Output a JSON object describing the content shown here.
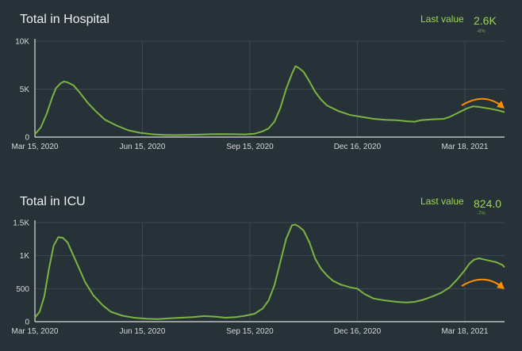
{
  "chart_data": [
    {
      "type": "line",
      "title": "Total in Hospital",
      "last_value_label": "Last value",
      "last_value": "2.6K",
      "last_value_change": "-6%",
      "line_color": "#7cb342",
      "trend_arrow_color": "#ff8f00",
      "grid": true,
      "ylim": [
        0,
        10000
      ],
      "y_ticks": [
        {
          "value": 0,
          "label": "0"
        },
        {
          "value": 5000,
          "label": "5K"
        },
        {
          "value": 10000,
          "label": "10K"
        }
      ],
      "xlim_days": [
        0,
        402
      ],
      "x_ticks": [
        {
          "day": 0,
          "label": "Mar 15, 2020"
        },
        {
          "day": 92,
          "label": "Jun 15, 2020"
        },
        {
          "day": 184,
          "label": "Sep 15, 2020"
        },
        {
          "day": 276,
          "label": "Dec 16, 2020"
        },
        {
          "day": 368,
          "label": "Mar 18, 2021"
        }
      ],
      "series": [
        {
          "name": "Total in Hospital",
          "points": [
            [
              0,
              300
            ],
            [
              5,
              1000
            ],
            [
              10,
              2400
            ],
            [
              15,
              4200
            ],
            [
              18,
              5100
            ],
            [
              22,
              5600
            ],
            [
              25,
              5800
            ],
            [
              28,
              5700
            ],
            [
              33,
              5400
            ],
            [
              38,
              4700
            ],
            [
              45,
              3600
            ],
            [
              52,
              2700
            ],
            [
              60,
              1800
            ],
            [
              70,
              1200
            ],
            [
              80,
              700
            ],
            [
              90,
              450
            ],
            [
              100,
              300
            ],
            [
              110,
              230
            ],
            [
              120,
              210
            ],
            [
              130,
              230
            ],
            [
              140,
              260
            ],
            [
              150,
              300
            ],
            [
              160,
              310
            ],
            [
              170,
              300
            ],
            [
              180,
              280
            ],
            [
              188,
              350
            ],
            [
              195,
              600
            ],
            [
              200,
              900
            ],
            [
              205,
              1600
            ],
            [
              210,
              3000
            ],
            [
              215,
              5000
            ],
            [
              220,
              6600
            ],
            [
              223,
              7400
            ],
            [
              226,
              7200
            ],
            [
              230,
              6800
            ],
            [
              235,
              5800
            ],
            [
              240,
              4700
            ],
            [
              245,
              3900
            ],
            [
              250,
              3300
            ],
            [
              260,
              2700
            ],
            [
              270,
              2300
            ],
            [
              280,
              2100
            ],
            [
              290,
              1900
            ],
            [
              300,
              1800
            ],
            [
              310,
              1750
            ],
            [
              318,
              1650
            ],
            [
              325,
              1600
            ],
            [
              330,
              1750
            ],
            [
              340,
              1850
            ],
            [
              350,
              1900
            ],
            [
              355,
              2100
            ],
            [
              360,
              2400
            ],
            [
              365,
              2700
            ],
            [
              370,
              3000
            ],
            [
              375,
              3200
            ],
            [
              380,
              3150
            ],
            [
              385,
              3050
            ],
            [
              390,
              2950
            ],
            [
              396,
              2800
            ],
            [
              402,
              2600
            ]
          ]
        }
      ]
    },
    {
      "type": "line",
      "title": "Total in ICU",
      "last_value_label": "Last value",
      "last_value": "824.0",
      "last_value_change": "-7%",
      "line_color": "#7cb342",
      "trend_arrow_color": "#ff8f00",
      "grid": true,
      "ylim": [
        0,
        1500
      ],
      "y_ticks": [
        {
          "value": 0,
          "label": "0"
        },
        {
          "value": 500,
          "label": "500"
        },
        {
          "value": 1000,
          "label": "1K"
        },
        {
          "value": 1500,
          "label": "1.5K"
        }
      ],
      "xlim_days": [
        0,
        402
      ],
      "x_ticks": [
        {
          "day": 0,
          "label": "Mar 15, 2020"
        },
        {
          "day": 92,
          "label": "Jun 15, 2020"
        },
        {
          "day": 184,
          "label": "Sep 15, 2020"
        },
        {
          "day": 276,
          "label": "Dec 16, 2020"
        },
        {
          "day": 368,
          "label": "Mar 18, 2021"
        }
      ],
      "series": [
        {
          "name": "Total in ICU",
          "points": [
            [
              0,
              60
            ],
            [
              4,
              150
            ],
            [
              8,
              380
            ],
            [
              12,
              800
            ],
            [
              16,
              1150
            ],
            [
              20,
              1280
            ],
            [
              24,
              1270
            ],
            [
              28,
              1200
            ],
            [
              33,
              1000
            ],
            [
              38,
              800
            ],
            [
              43,
              600
            ],
            [
              50,
              400
            ],
            [
              58,
              250
            ],
            [
              65,
              150
            ],
            [
              75,
              90
            ],
            [
              85,
              60
            ],
            [
              95,
              45
            ],
            [
              105,
              40
            ],
            [
              115,
              50
            ],
            [
              125,
              60
            ],
            [
              135,
              70
            ],
            [
              145,
              85
            ],
            [
              155,
              75
            ],
            [
              163,
              60
            ],
            [
              172,
              70
            ],
            [
              180,
              90
            ],
            [
              188,
              120
            ],
            [
              195,
              200
            ],
            [
              200,
              320
            ],
            [
              205,
              550
            ],
            [
              210,
              900
            ],
            [
              215,
              1250
            ],
            [
              220,
              1460
            ],
            [
              223,
              1470
            ],
            [
              226,
              1440
            ],
            [
              230,
              1380
            ],
            [
              235,
              1200
            ],
            [
              240,
              950
            ],
            [
              245,
              800
            ],
            [
              250,
              700
            ],
            [
              255,
              620
            ],
            [
              262,
              560
            ],
            [
              270,
              520
            ],
            [
              276,
              500
            ],
            [
              282,
              420
            ],
            [
              290,
              350
            ],
            [
              300,
              320
            ],
            [
              310,
              300
            ],
            [
              318,
              290
            ],
            [
              325,
              300
            ],
            [
              332,
              330
            ],
            [
              340,
              380
            ],
            [
              348,
              440
            ],
            [
              355,
              520
            ],
            [
              362,
              650
            ],
            [
              368,
              780
            ],
            [
              372,
              880
            ],
            [
              376,
              940
            ],
            [
              380,
              960
            ],
            [
              385,
              940
            ],
            [
              390,
              920
            ],
            [
              395,
              900
            ],
            [
              400,
              860
            ],
            [
              402,
              824
            ]
          ]
        }
      ]
    }
  ]
}
